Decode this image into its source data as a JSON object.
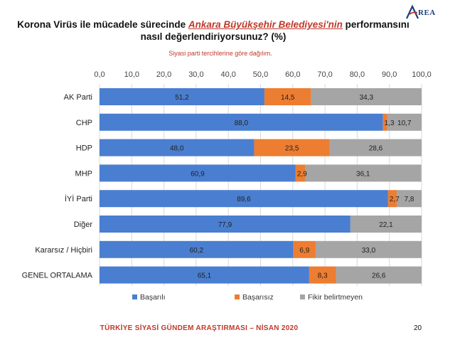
{
  "title": {
    "part1": "Korona Virüs ile mücadele sürecinde ",
    "highlight": "Ankara Büyükşehir Belediyesi'nin",
    "part2": " performansını",
    "line2": "nasıl değerlendiriyorsunuz? (%)"
  },
  "subtitle": "Siyasi parti tercihlerine göre dağılım.",
  "logo_text": "REA",
  "footer": "TÜRKİYE SİYASİ GÜNDEM ARAŞTIRMASI – NİSAN 2020",
  "page_number": "20",
  "chart_data": {
    "type": "bar",
    "orientation": "horizontal-stacked",
    "categories": [
      "AK Parti",
      "CHP",
      "HDP",
      "MHP",
      "İYİ Parti",
      "Diğer",
      "Kararsız / Hiçbiri",
      "GENEL ORTALAMA"
    ],
    "series": [
      {
        "name": "Başarılı",
        "color": "#4a7ed0",
        "values": [
          51.2,
          88.0,
          48.0,
          60.9,
          89.6,
          77.9,
          60.2,
          65.1
        ]
      },
      {
        "name": "Başarısız",
        "color": "#ed7d31",
        "values": [
          14.5,
          1.3,
          23.5,
          2.9,
          2.7,
          0,
          6.9,
          8.3
        ]
      },
      {
        "name": "Fikir belirtmeyen",
        "color": "#a5a5a5",
        "values": [
          34.3,
          10.7,
          28.6,
          36.1,
          7.8,
          22.1,
          33.0,
          26.6
        ]
      }
    ],
    "ticks": [
      "0,0",
      "10,0",
      "20,0",
      "30,0",
      "40,0",
      "50,0",
      "60,0",
      "70,0",
      "80,0",
      "90,0",
      "100,0"
    ],
    "xlim": [
      0,
      100
    ],
    "grid": true,
    "legend": "bottom"
  }
}
